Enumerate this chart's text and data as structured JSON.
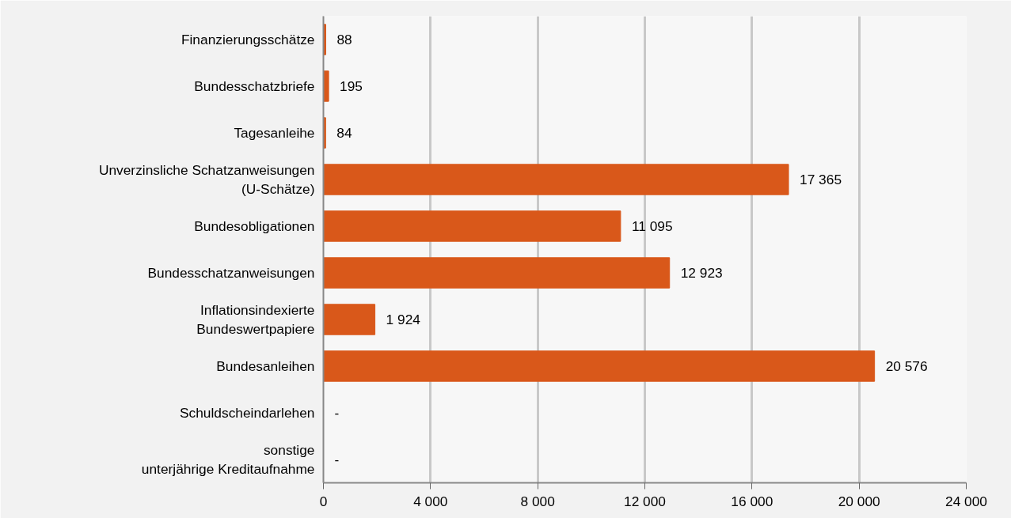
{
  "chart_data": {
    "type": "bar",
    "orientation": "horizontal",
    "categories": [
      "Finanzierungsschätze",
      "Bundesschatzbriefe",
      "Tagesanleihe",
      "Unverzinsliche Schatzanweisungen\n(U-Schätze)",
      "Bundesobligationen",
      "Bundesschatzanweisungen",
      "Inflationsindexierte\nBundeswertpapiere",
      "Bundesanleihen",
      "Schuldscheindarlehen",
      "sonstige\nunterjährige Kreditaufnahme"
    ],
    "values": [
      88,
      195,
      84,
      17365,
      11095,
      12923,
      1924,
      20576,
      null,
      null
    ],
    "value_labels": [
      "88",
      "195",
      "84",
      "17 365",
      "11 095",
      "12 923",
      "1 924",
      "20 576",
      "-",
      "-"
    ],
    "color": "#d9581a",
    "xlim": [
      0,
      24000
    ],
    "xticks": [
      0,
      {
        "value": 4000,
        "label": "4 000"
      },
      {
        "value": 8000,
        "label": "8 000"
      },
      {
        "value": 12000,
        "label": "12 000"
      },
      {
        "value": 16000,
        "label": "16 000"
      },
      {
        "value": 20000,
        "label": "20 000"
      },
      {
        "value": 24000,
        "label": "24 000"
      }
    ],
    "grid": "x"
  }
}
